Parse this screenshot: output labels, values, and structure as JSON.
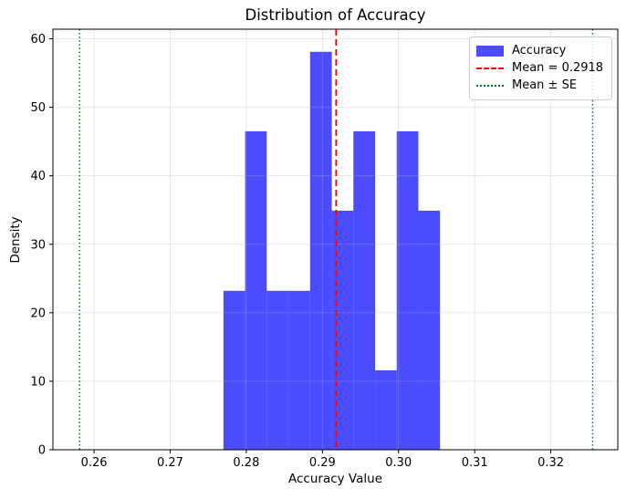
{
  "title": "Distribution of Accuracy",
  "axes": {
    "xlabel": "Accuracy Value",
    "ylabel": "Density"
  },
  "legend": {
    "position": "upper right",
    "items": [
      {
        "label": "Accuracy",
        "swatch": "patch",
        "color": "#0000ff"
      },
      {
        "label": "Mean = 0.2918",
        "swatch": "dashed-line",
        "color": "#ff0000"
      },
      {
        "label": "Mean ± SE",
        "swatch": "dotted-line",
        "color": "#008000"
      }
    ]
  },
  "chart_data": {
    "type": "bar",
    "subtype": "density-histogram",
    "title": "Distribution of Accuracy",
    "xlabel": "Accuracy Value",
    "ylabel": "Density",
    "bin_edges": [
      0.277,
      0.27985,
      0.28269,
      0.28554,
      0.28838,
      0.29123,
      0.29407,
      0.29692,
      0.29976,
      0.30261,
      0.30545
    ],
    "densities": [
      23.2,
      46.5,
      23.2,
      23.2,
      58.1,
      34.9,
      46.5,
      11.6,
      46.5,
      34.9
    ],
    "mean": 0.2918,
    "mean_minus_se": 0.2581,
    "mean_plus_se": 0.3255,
    "xlim": [
      0.2546,
      0.3288
    ],
    "ylim": [
      0,
      61.4
    ],
    "xticks": {
      "values": [
        0.26,
        0.27,
        0.28,
        0.29,
        0.3,
        0.31,
        0.32
      ],
      "labels": [
        "0.26",
        "0.27",
        "0.28",
        "0.29",
        "0.30",
        "0.31",
        "0.32"
      ]
    },
    "yticks": {
      "values": [
        0,
        10,
        20,
        30,
        40,
        50,
        60
      ],
      "labels": [
        "0",
        "10",
        "20",
        "30",
        "40",
        "50",
        "60"
      ]
    },
    "grid": true,
    "legend_position": "upper right",
    "colors": {
      "bar": "#0000ff",
      "bar_alpha": 0.7,
      "mean_line": "#ff0000",
      "se_line": "#008000",
      "grid": "#b0b0b0",
      "grid_alpha": 0.3,
      "spine": "#000000"
    }
  }
}
